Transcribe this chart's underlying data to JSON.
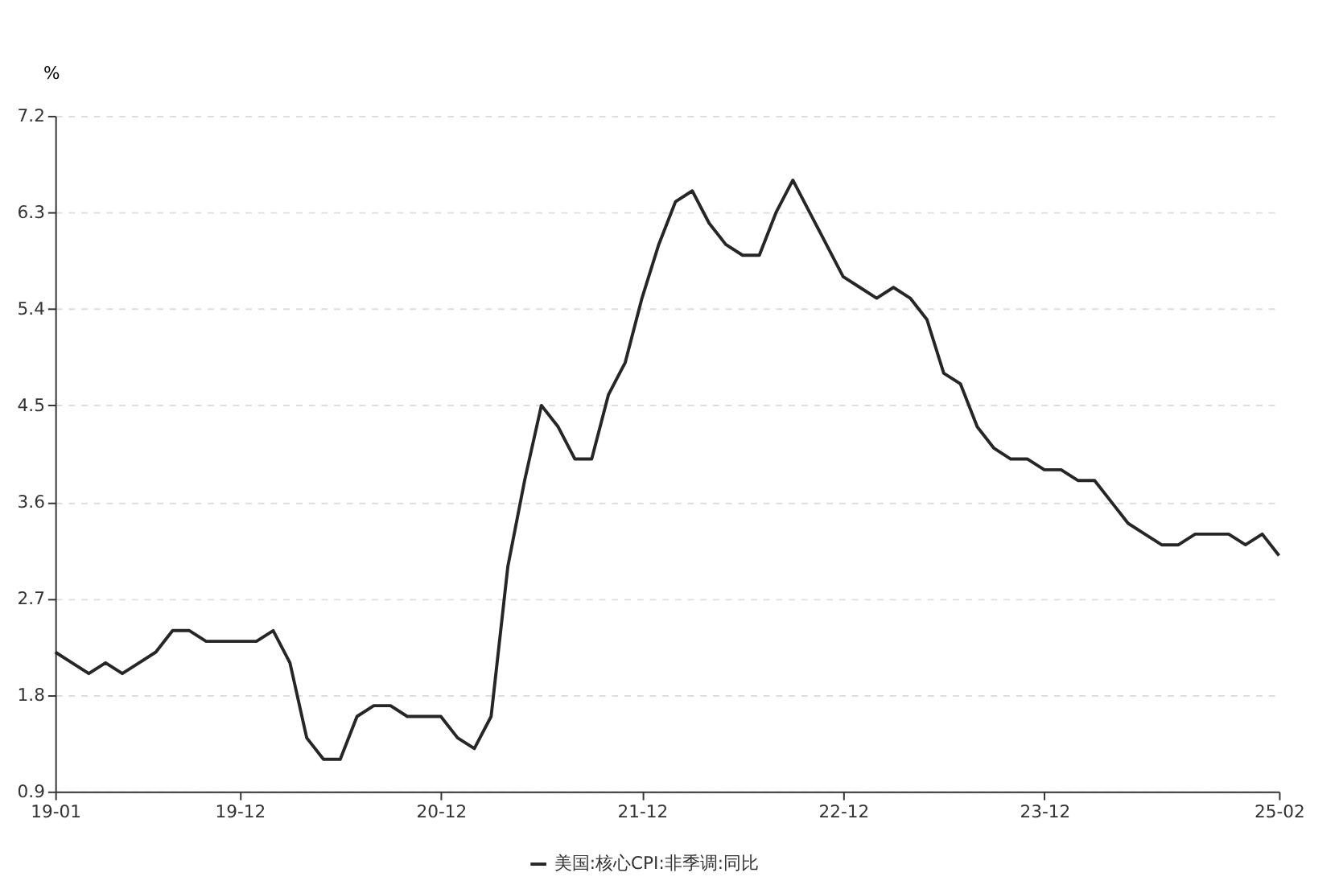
{
  "chart_data": {
    "type": "line",
    "ylabel": "%",
    "categories": [
      "19-01",
      null,
      null,
      null,
      null,
      null,
      null,
      null,
      null,
      null,
      null,
      "19-12",
      null,
      null,
      null,
      null,
      null,
      null,
      null,
      null,
      null,
      null,
      null,
      "20-12",
      null,
      null,
      null,
      null,
      null,
      null,
      null,
      null,
      null,
      null,
      null,
      "21-12",
      null,
      null,
      null,
      null,
      null,
      null,
      null,
      null,
      null,
      null,
      null,
      "22-12",
      null,
      null,
      null,
      null,
      null,
      null,
      null,
      null,
      null,
      null,
      null,
      "23-12",
      null,
      null,
      null,
      null,
      null,
      null,
      null,
      null,
      null,
      null,
      null,
      null,
      null,
      "25-02"
    ],
    "series": [
      {
        "name": "美国:核心CPI:非季调:同比",
        "color": "#262626",
        "values": [
          2.2,
          2.1,
          2.0,
          2.1,
          2.0,
          2.1,
          2.2,
          2.4,
          2.4,
          2.3,
          2.3,
          2.3,
          2.3,
          2.4,
          2.1,
          1.4,
          1.2,
          1.2,
          1.6,
          1.7,
          1.7,
          1.6,
          1.6,
          1.6,
          1.4,
          1.3,
          1.6,
          3.0,
          3.8,
          4.5,
          4.3,
          4.0,
          4.0,
          4.6,
          4.9,
          5.5,
          6.0,
          6.4,
          6.5,
          6.2,
          6.0,
          5.9,
          5.9,
          6.3,
          6.6,
          6.3,
          6.0,
          5.7,
          5.6,
          5.5,
          5.6,
          5.5,
          5.3,
          4.8,
          4.7,
          4.3,
          4.1,
          4.0,
          4.0,
          3.9,
          3.9,
          3.8,
          3.8,
          3.6,
          3.4,
          3.3,
          3.2,
          3.2,
          3.3,
          3.3,
          3.3,
          3.2,
          3.3,
          3.1
        ]
      }
    ],
    "ylim": [
      0.9,
      7.2
    ],
    "yticks": [
      0.9,
      1.8,
      2.7,
      3.6,
      4.5,
      5.4,
      6.3,
      7.2
    ],
    "grid": "y",
    "legend": "bottom",
    "marker": "none",
    "line_style": "solid"
  }
}
